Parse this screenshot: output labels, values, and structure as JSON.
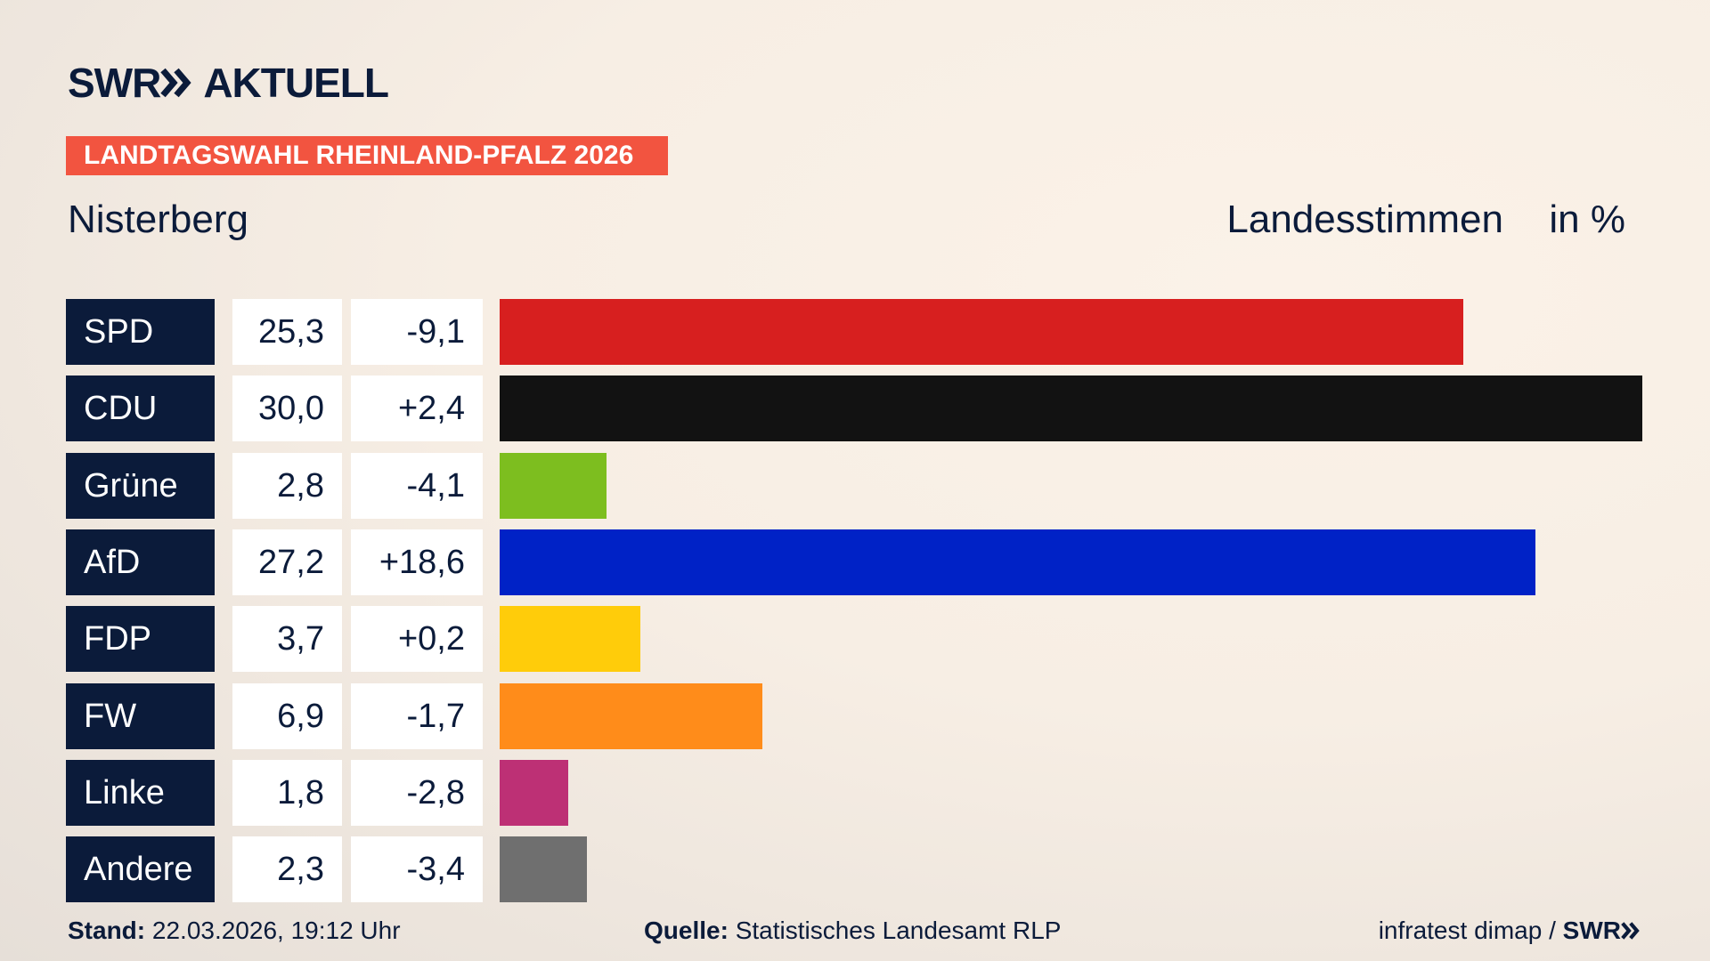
{
  "header": {
    "brand": "SWR",
    "brand_section": "AKTUELL",
    "tag": "LANDTAGSWAHL RHEINLAND-PFALZ 2026"
  },
  "chart_data": {
    "type": "bar",
    "orientation": "horizontal",
    "title": "Nisterberg",
    "subtitle": "Landesstimmen",
    "unit_label": "in %",
    "categories": [
      "SPD",
      "CDU",
      "Grüne",
      "AfD",
      "FDP",
      "FW",
      "Linke",
      "Andere"
    ],
    "values": [
      25.3,
      30.0,
      2.8,
      27.2,
      3.7,
      6.9,
      1.8,
      2.3
    ],
    "value_labels": [
      "25,3",
      "30,0",
      "2,8",
      "27,2",
      "3,7",
      "6,9",
      "1,8",
      "2,3"
    ],
    "changes": [
      "-9,1",
      "+2,4",
      "-4,1",
      "+18,6",
      "+0,2",
      "-1,7",
      "-2,8",
      "-3,4"
    ],
    "colors": [
      "#d71f1f",
      "#121212",
      "#7dbe1f",
      "#0022c6",
      "#ffcc0a",
      "#ff8c1a",
      "#bd3075",
      "#6f6f6f"
    ]
  },
  "footer": {
    "stand_label": "Stand:",
    "stand": "22.03.2026, 19:12 Uhr",
    "source_label": "Quelle:",
    "source": "Statistisches Landesamt RLP",
    "credit": "infratest dimap /",
    "credit_brand": "SWR"
  }
}
